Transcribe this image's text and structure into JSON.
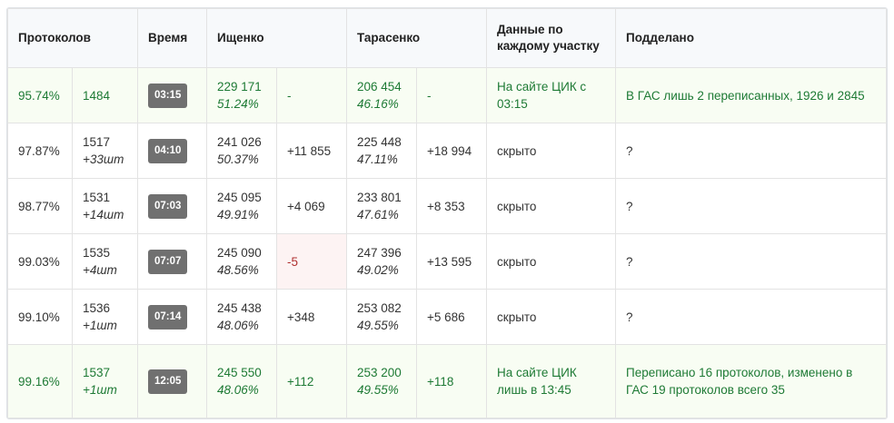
{
  "headers": [
    "Протоколов",
    "Время",
    "Ищенко",
    "Тарасенко",
    "Данные по каждому участку",
    "Подделано"
  ],
  "rows": [
    {
      "pct": "95.74%",
      "count": "1484",
      "added": "",
      "time": "03:15",
      "i_votes": "229 171",
      "i_pct": "51.24%",
      "i_delta": "-",
      "t_votes": "206 454",
      "t_pct": "46.16%",
      "t_delta": "-",
      "data": "На сайте ЦИК с 03:15",
      "fake": "В ГАС лишь 2 переписанных, 1926 и 2845",
      "highlight": true
    },
    {
      "pct": "97.87%",
      "count": "1517",
      "added": "+33шт",
      "time": "04:10",
      "i_votes": "241 026",
      "i_pct": "50.37%",
      "i_delta": "+11 855",
      "t_votes": "225 448",
      "t_pct": "47.11%",
      "t_delta": "+18 994",
      "data": "скрыто",
      "fake": "?"
    },
    {
      "pct": "98.77%",
      "count": "1531",
      "added": "+14шт",
      "time": "07:03",
      "i_votes": "245 095",
      "i_pct": "49.91%",
      "i_delta": "+4 069",
      "t_votes": "233 801",
      "t_pct": "47.61%",
      "t_delta": "+8 353",
      "data": "скрыто",
      "fake": "?"
    },
    {
      "pct": "99.03%",
      "count": "1535",
      "added": "+4шт",
      "time": "07:07",
      "i_votes": "245 090",
      "i_pct": "48.56%",
      "i_delta": "-5",
      "t_votes": "247 396",
      "t_pct": "49.02%",
      "t_delta": "+13 595",
      "data": "скрыто",
      "fake": "?",
      "negative": true
    },
    {
      "pct": "99.10%",
      "count": "1536",
      "added": "+1шт",
      "time": "07:14",
      "i_votes": "245 438",
      "i_pct": "48.06%",
      "i_delta": "+348",
      "t_votes": "253 082",
      "t_pct": "49.55%",
      "t_delta": "+5 686",
      "data": "скрыто",
      "fake": "?"
    },
    {
      "pct": "99.16%",
      "count": "1537",
      "added": "+1шт",
      "time": "12:05",
      "i_votes": "245 550",
      "i_pct": "48.06%",
      "i_delta": "+112",
      "t_votes": "253 200",
      "t_pct": "49.55%",
      "t_delta": "+118",
      "data": "На сайте ЦИК лишь в 13:45",
      "fake": "Переписано 16 протоколов, изменено в ГАС 19 протоколов всего 35",
      "highlight": true
    }
  ]
}
